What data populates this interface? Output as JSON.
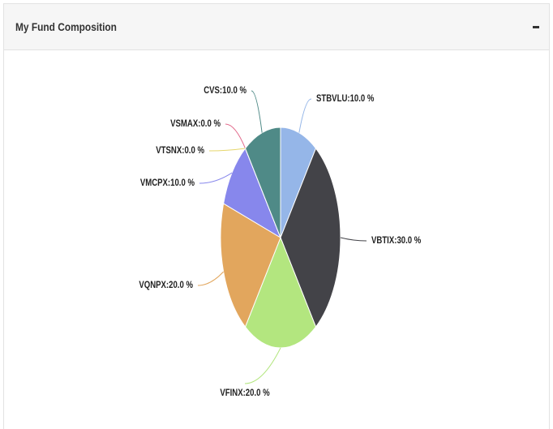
{
  "panel": {
    "title": "My Fund Composition"
  },
  "chart_data": {
    "type": "pie",
    "values": [
      10,
      30,
      20,
      20,
      10,
      0,
      0,
      10
    ],
    "value_labels": [
      "STBVLU:10.0 %",
      "VBTIX:30.0 %",
      "VFINX:20.0 %",
      "VQNPX:20.0 %",
      "VMCPX:10.0 %",
      "VTSNX:0.0 %",
      "VSMAX:0.0 %",
      "CVS:10.0 %"
    ],
    "colors": [
      "#95b6e8",
      "#434348",
      "#b3e67f",
      "#e2a65d",
      "#8787ec",
      "#e6d66c",
      "#e26b8c",
      "#4f8a87"
    ]
  }
}
